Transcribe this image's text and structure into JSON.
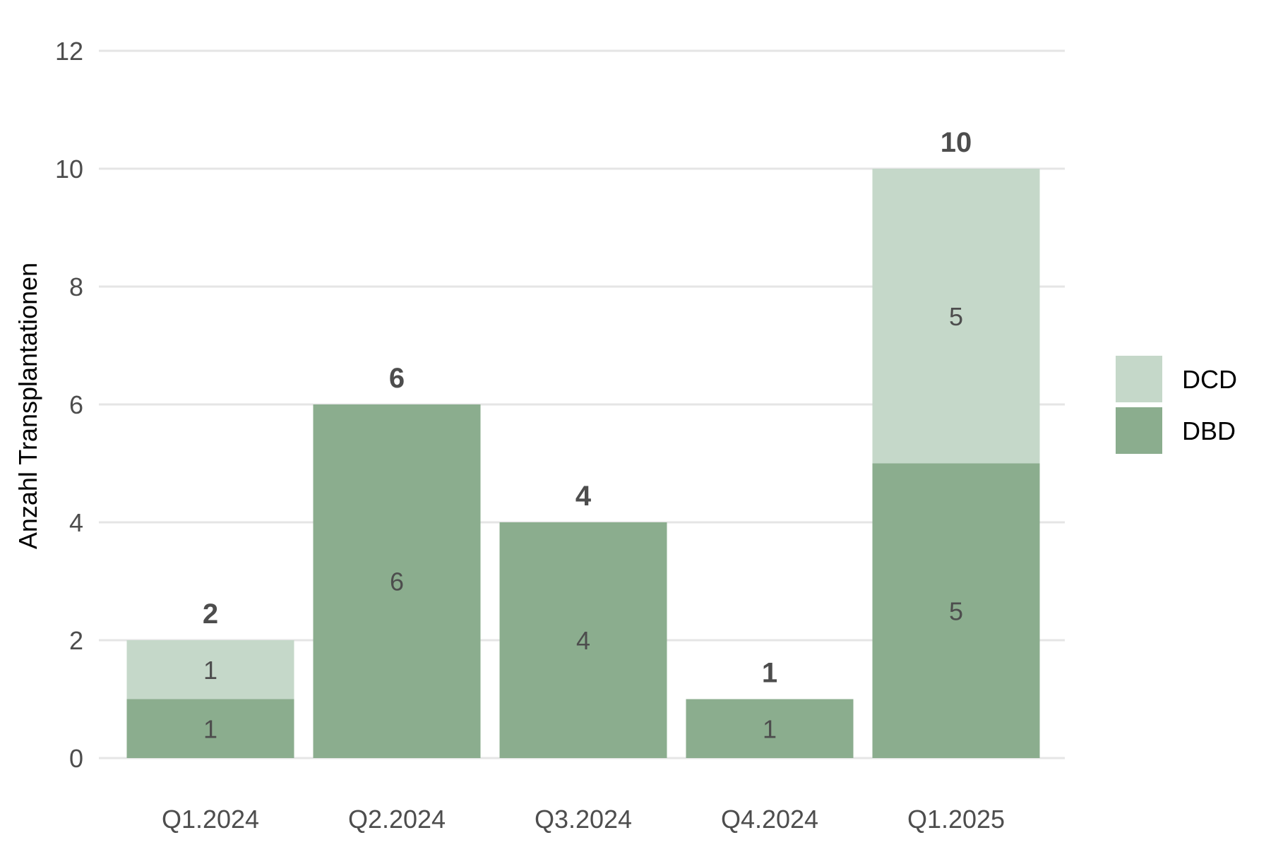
{
  "chart_data": {
    "type": "bar",
    "stacked": true,
    "title": "",
    "xlabel": "",
    "ylabel": "Anzahl Transplantationen",
    "ylim": [
      0,
      12
    ],
    "yticks": [
      0,
      2,
      4,
      6,
      8,
      10,
      12
    ],
    "grid": true,
    "legend_position": "right",
    "categories": [
      "Q1.2024",
      "Q2.2024",
      "Q3.2024",
      "Q4.2024",
      "Q1.2025"
    ],
    "series": [
      {
        "name": "DBD",
        "values": [
          1,
          6,
          4,
          1,
          5
        ],
        "color": "#8bad8e"
      },
      {
        "name": "DCD",
        "values": [
          1,
          0,
          0,
          0,
          5
        ],
        "color": "#c5d8c9"
      }
    ],
    "totals": [
      2,
      6,
      4,
      1,
      10
    ],
    "legend_order": [
      "DCD",
      "DBD"
    ]
  }
}
